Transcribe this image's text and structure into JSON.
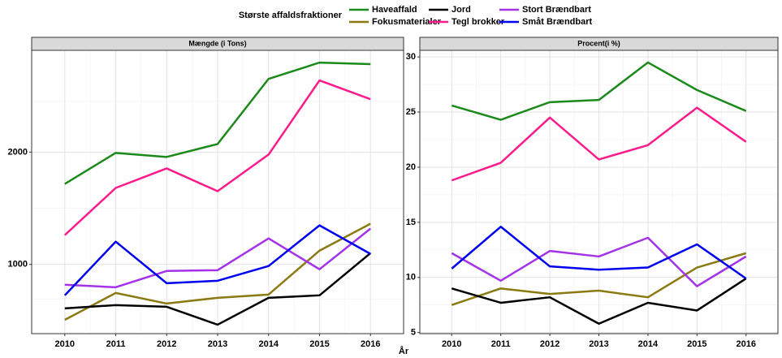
{
  "legend_title": "Største affaldsfraktioner",
  "xlabel": "År",
  "chart_data": [
    {
      "type": "line",
      "title": "Mængde (i Tons)",
      "x": [
        2010,
        2011,
        2012,
        2013,
        2014,
        2015,
        2016
      ],
      "xlim": [
        2009.35,
        2016.65
      ],
      "xticks": [
        2010,
        2011,
        2012,
        2013,
        2014,
        2015,
        2016
      ],
      "ylim": [
        384,
        2906
      ],
      "yticks": [
        1000,
        2000
      ],
      "grid": true,
      "series": [
        {
          "name": "Haveaffald",
          "color": "#1b8a1b",
          "values": [
            1717,
            1993,
            1957,
            2072,
            2652,
            2797,
            2783
          ]
        },
        {
          "name": "Fokusmaterialer",
          "color": "#8b7a12",
          "values": [
            507,
            746,
            652,
            703,
            732,
            1123,
            1362
          ]
        },
        {
          "name": "Jord",
          "color": "#000000",
          "values": [
            609,
            638,
            623,
            464,
            703,
            725,
            1101
          ]
        },
        {
          "name": "Tegl brokker",
          "color": "#ff1a8c",
          "values": [
            1261,
            1681,
            1855,
            1652,
            1978,
            2638,
            2471
          ]
        },
        {
          "name": "Stort Brændbart",
          "color": "#a432e8",
          "values": [
            819,
            797,
            942,
            949,
            1232,
            957,
            1319
          ]
        },
        {
          "name": "Småt Brændbart",
          "color": "#0000f0",
          "values": [
            725,
            1203,
            833,
            855,
            986,
            1348,
            1094
          ]
        }
      ]
    },
    {
      "type": "line",
      "title": "Procent(i %)",
      "x": [
        2010,
        2011,
        2012,
        2013,
        2014,
        2015,
        2016
      ],
      "xlim": [
        2009.35,
        2016.65
      ],
      "xticks": [
        2010,
        2011,
        2012,
        2013,
        2014,
        2015,
        2016
      ],
      "ylim": [
        4.9,
        30.6
      ],
      "yticks": [
        5,
        10,
        15,
        20,
        25,
        30
      ],
      "grid": true,
      "series": [
        {
          "color": "#1b8a1b",
          "values": [
            25.6,
            24.3,
            25.9,
            26.1,
            29.5,
            27.0,
            25.1
          ]
        },
        {
          "color": "#8b7a12",
          "values": [
            7.5,
            9.0,
            8.5,
            8.8,
            8.2,
            10.9,
            12.2
          ]
        },
        {
          "color": "#000000",
          "values": [
            9.0,
            7.7,
            8.2,
            5.8,
            7.7,
            7.0,
            9.9
          ]
        },
        {
          "color": "#ff1a8c",
          "values": [
            18.8,
            20.4,
            24.5,
            20.7,
            22.0,
            25.4,
            22.3
          ]
        },
        {
          "color": "#a432e8",
          "values": [
            12.2,
            9.7,
            12.4,
            11.9,
            13.6,
            9.2,
            11.9
          ]
        },
        {
          "color": "#0000f0",
          "values": [
            10.8,
            14.6,
            11.0,
            10.7,
            10.9,
            13.0,
            9.9
          ]
        }
      ]
    }
  ]
}
